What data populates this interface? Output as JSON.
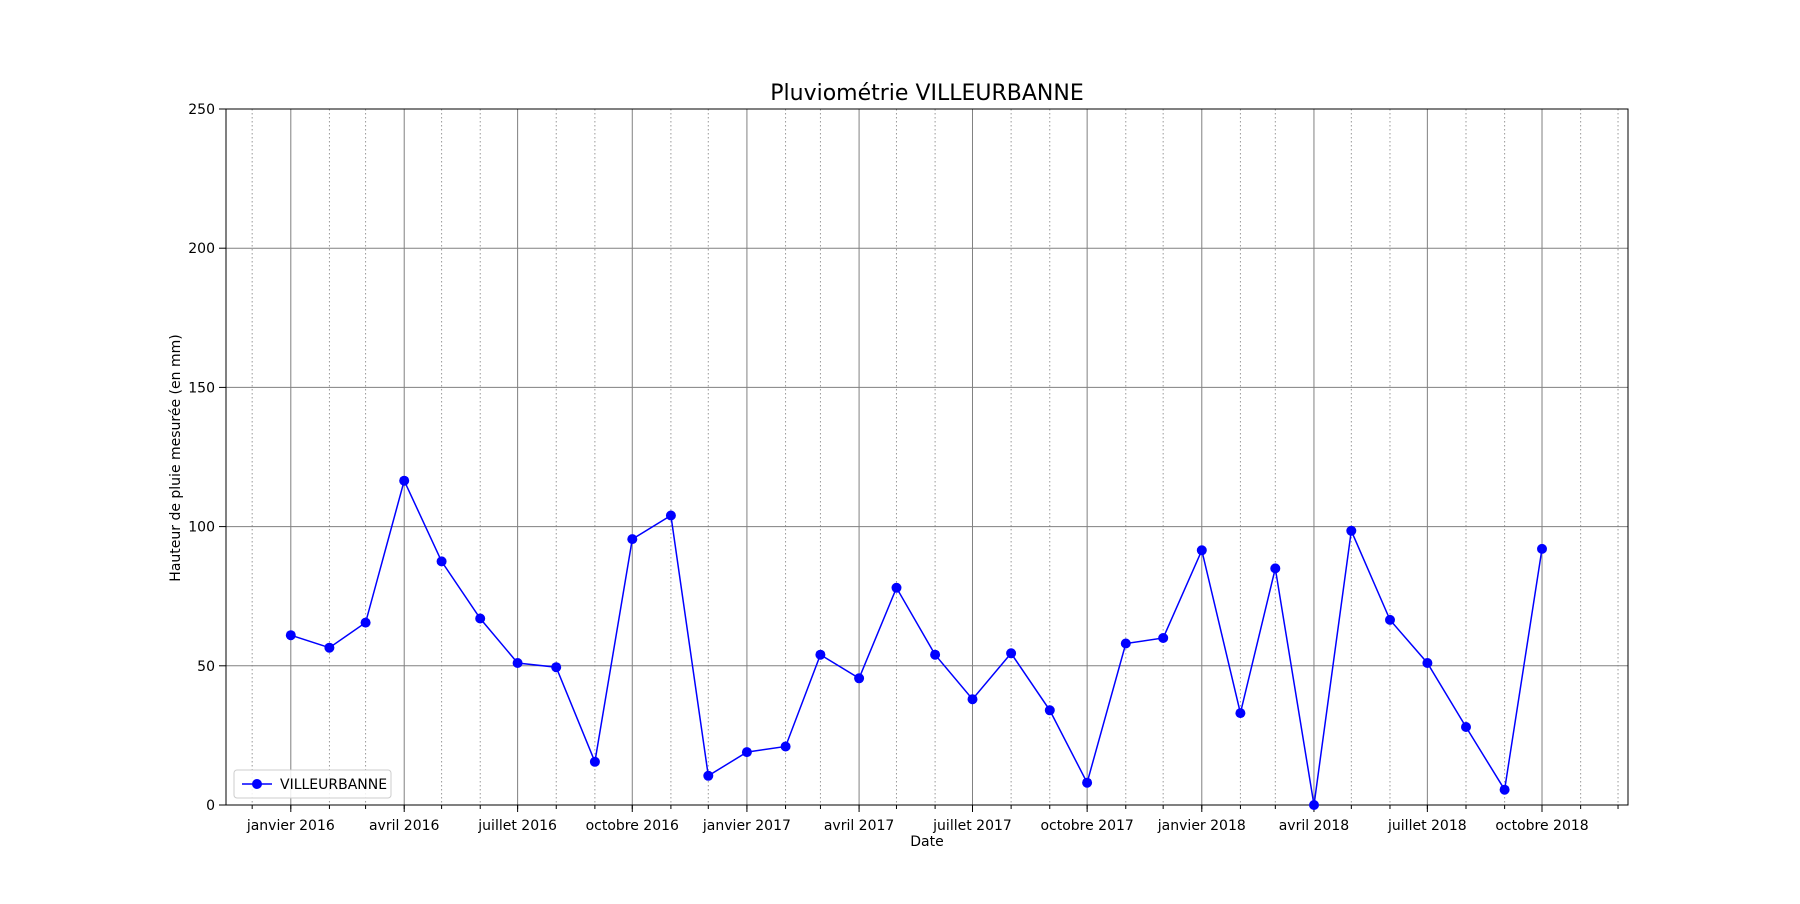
{
  "chart_data": {
    "type": "line",
    "title": "Pluviométrie VILLEURBANNE",
    "xlabel": "Date",
    "ylabel": "Hauteur de pluie mesurée (en mm)",
    "ylim": [
      0,
      250
    ],
    "yticks": [
      0,
      50,
      100,
      150,
      200,
      250
    ],
    "xlim": [
      "2015-11-10",
      "2018-12-09"
    ],
    "xticks": [
      {
        "date": "2016-01-01",
        "label": "janvier 2016"
      },
      {
        "date": "2016-04-01",
        "label": "avril 2016"
      },
      {
        "date": "2016-07-01",
        "label": "juillet 2016"
      },
      {
        "date": "2016-10-01",
        "label": "octobre 2016"
      },
      {
        "date": "2017-01-01",
        "label": "janvier 2017"
      },
      {
        "date": "2017-04-01",
        "label": "avril 2017"
      },
      {
        "date": "2017-07-01",
        "label": "juillet 2017"
      },
      {
        "date": "2017-10-01",
        "label": "octobre 2017"
      },
      {
        "date": "2018-01-01",
        "label": "janvier 2018"
      },
      {
        "date": "2018-04-01",
        "label": "avril 2018"
      },
      {
        "date": "2018-07-01",
        "label": "juillet 2018"
      },
      {
        "date": "2018-10-01",
        "label": "octobre 2018"
      }
    ],
    "grid": {
      "major": "solid",
      "minor": "dotted"
    },
    "legend": {
      "position": "lower-left"
    },
    "series": [
      {
        "name": "VILLEURBANNE",
        "color": "#0000ff",
        "marker": "circle",
        "x": [
          "2016-01-01",
          "2016-02-01",
          "2016-03-01",
          "2016-04-01",
          "2016-05-01",
          "2016-06-01",
          "2016-07-01",
          "2016-08-01",
          "2016-09-01",
          "2016-10-01",
          "2016-11-01",
          "2016-12-01",
          "2017-01-01",
          "2017-02-01",
          "2017-03-01",
          "2017-04-01",
          "2017-05-01",
          "2017-06-01",
          "2017-07-01",
          "2017-08-01",
          "2017-09-01",
          "2017-10-01",
          "2017-11-01",
          "2017-12-01",
          "2018-01-01",
          "2018-02-01",
          "2018-03-01",
          "2018-04-01",
          "2018-05-01",
          "2018-06-01",
          "2018-07-01",
          "2018-08-01",
          "2018-09-01",
          "2018-10-01"
        ],
        "values": [
          61,
          56.5,
          65.5,
          116.5,
          87.5,
          67,
          51,
          49.5,
          15.5,
          95.5,
          104,
          10.5,
          19,
          21,
          54,
          45.5,
          78,
          54,
          38,
          54.5,
          34,
          8,
          58,
          60,
          91.5,
          33,
          85,
          0,
          98.5,
          66.5,
          51,
          28,
          5.5,
          92
        ]
      }
    ]
  }
}
